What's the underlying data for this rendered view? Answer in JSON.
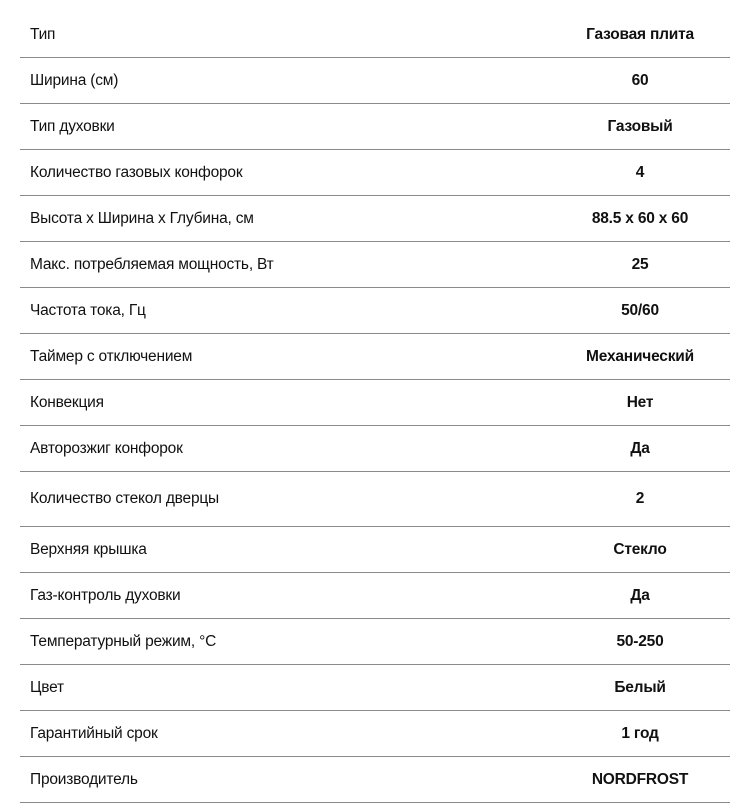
{
  "specs": [
    {
      "label": "Тип",
      "value": "Газовая плита"
    },
    {
      "label": "Ширина (см)",
      "value": "60"
    },
    {
      "label": "Тип духовки",
      "value": "Газовый"
    },
    {
      "label": "Количество газовых конфорок",
      "value": "4"
    },
    {
      "label": "Высота х Ширина х Глубина, см",
      "value": "88.5 x 60 x 60"
    },
    {
      "label": "Макс. потребляемая мощность, Вт",
      "value": "25"
    },
    {
      "label": "Частота тока, Гц",
      "value": "50/60"
    },
    {
      "label": "Таймер с отключением",
      "value": "Механический"
    },
    {
      "label": "Конвекция",
      "value": "Нет"
    },
    {
      "label": "Автоpозжиг конфорок",
      "value": "Да"
    },
    {
      "label": "Количество стекол дверцы",
      "value": "2"
    },
    {
      "label": "Верхняя крышка",
      "value": "Стекло"
    },
    {
      "label": "Газ-контроль духовки",
      "value": "Да"
    },
    {
      "label": "Температурный режим, °C",
      "value": "50-250"
    },
    {
      "label": "Цвет",
      "value": "Белый"
    },
    {
      "label": "Гарантийный срок",
      "value": "1 год"
    },
    {
      "label": "Производитель",
      "value": "NORDFROST"
    }
  ]
}
